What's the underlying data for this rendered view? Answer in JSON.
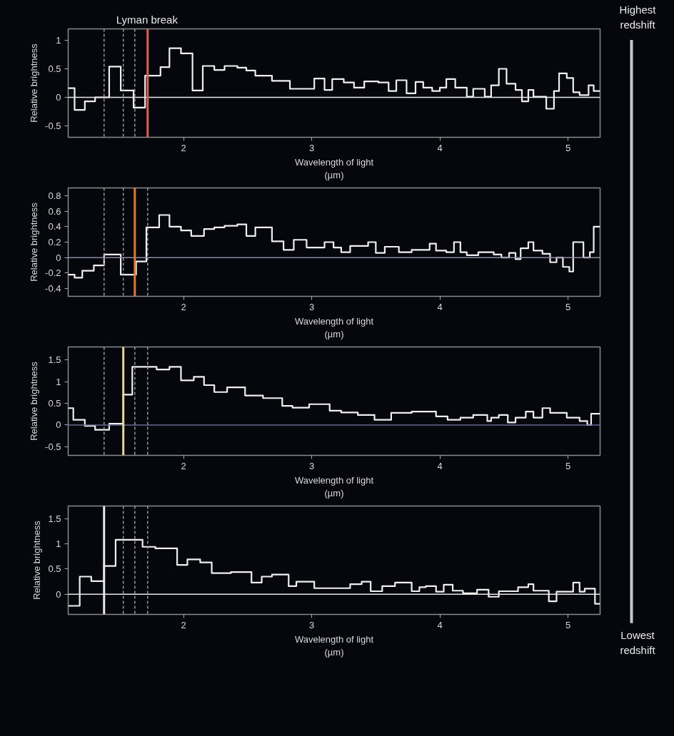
{
  "chart_data": [
    {
      "type": "step",
      "xlabel": "Wavelength of light\n(µm)",
      "ylabel": "Relative brightness",
      "xlim": [
        1.1,
        5.25
      ],
      "xticks": [
        2,
        3,
        4,
        5
      ],
      "ylim": [
        -0.7,
        1.2
      ],
      "yticks": [
        -0.5,
        0,
        0.5,
        1
      ],
      "grid": false,
      "series": [
        {
          "color": "#f0f0f0",
          "x": [
            1.1,
            1.15,
            1.23,
            1.31,
            1.42,
            1.51,
            1.61,
            1.7,
            1.82,
            1.89,
            1.98,
            2.07,
            2.15,
            2.24,
            2.32,
            2.42,
            2.49,
            2.56,
            2.69,
            2.83,
            3.02,
            3.1,
            3.16,
            3.25,
            3.33,
            3.41,
            3.52,
            3.6,
            3.66,
            3.74,
            3.81,
            3.87,
            3.94,
            4.0,
            4.05,
            4.12,
            4.21,
            4.26,
            4.35,
            4.4,
            4.46,
            4.52,
            4.59,
            4.64,
            4.69,
            4.73,
            4.83,
            4.89,
            4.93,
            4.99,
            5.04,
            5.09,
            5.16,
            5.2,
            5.25
          ],
          "values": [
            0.16,
            -0.22,
            -0.07,
            0.0,
            0.54,
            0.12,
            -0.18,
            0.38,
            0.53,
            0.86,
            0.77,
            0.12,
            0.55,
            0.48,
            0.55,
            0.52,
            0.47,
            0.38,
            0.29,
            0.15,
            0.33,
            0.13,
            0.32,
            0.26,
            0.17,
            0.28,
            0.26,
            0.11,
            0.3,
            0.07,
            0.27,
            0.17,
            0.11,
            0.17,
            0.32,
            0.17,
            0.01,
            0.15,
            0.01,
            0.21,
            0.5,
            0.24,
            0.13,
            -0.07,
            0.13,
            0.01,
            -0.2,
            0.11,
            0.42,
            0.34,
            0.09,
            0.04,
            0.21,
            0.11,
            0.11
          ]
        }
      ],
      "ref_lines": [
        {
          "axis": "y",
          "value": 0,
          "color": "#e8e8e8",
          "line_style": "solid"
        },
        {
          "axis": "x",
          "value": 1.38,
          "color": "#9a9a9a",
          "line_style": "dashed"
        },
        {
          "axis": "x",
          "value": 1.53,
          "color": "#9a9a9a",
          "line_style": "dashed"
        },
        {
          "axis": "x",
          "value": 1.62,
          "color": "#9a9a9a",
          "line_style": "dashed"
        },
        {
          "axis": "x",
          "value": 1.72,
          "color": "#e0604f",
          "line_style": "solid",
          "label": "Lyman break"
        }
      ]
    },
    {
      "type": "step",
      "xlabel": "Wavelength of light\n(µm)",
      "ylabel": "Relative brightness",
      "xlim": [
        1.1,
        5.25
      ],
      "xticks": [
        2,
        3,
        4,
        5
      ],
      "ylim": [
        -0.5,
        0.9
      ],
      "yticks": [
        -0.4,
        -0.2,
        0,
        0.2,
        0.4,
        0.6,
        0.8
      ],
      "grid": false,
      "series": [
        {
          "color": "#f0f0f0",
          "x": [
            1.1,
            1.15,
            1.21,
            1.3,
            1.38,
            1.45,
            1.51,
            1.63,
            1.71,
            1.81,
            1.89,
            1.98,
            2.06,
            2.16,
            2.24,
            2.32,
            2.42,
            2.49,
            2.56,
            2.69,
            2.78,
            2.86,
            2.96,
            3.1,
            3.17,
            3.23,
            3.3,
            3.44,
            3.5,
            3.57,
            3.68,
            3.78,
            3.92,
            3.97,
            4.05,
            4.11,
            4.16,
            4.21,
            4.3,
            4.42,
            4.48,
            4.54,
            4.59,
            4.63,
            4.69,
            4.73,
            4.8,
            4.86,
            4.91,
            4.96,
            5.01,
            5.04,
            5.12,
            5.17,
            5.2,
            5.25
          ],
          "values": [
            -0.22,
            -0.26,
            -0.17,
            -0.1,
            0.04,
            0.04,
            -0.22,
            -0.05,
            0.39,
            0.55,
            0.4,
            0.35,
            0.28,
            0.37,
            0.39,
            0.41,
            0.43,
            0.28,
            0.39,
            0.21,
            0.1,
            0.23,
            0.13,
            0.2,
            0.13,
            0.07,
            0.15,
            0.2,
            0.06,
            0.14,
            0.07,
            0.1,
            0.18,
            0.09,
            0.07,
            0.2,
            0.07,
            0.03,
            0.07,
            0.04,
            0.0,
            0.06,
            -0.02,
            0.12,
            0.2,
            0.09,
            0.05,
            -0.06,
            0.0,
            -0.12,
            -0.18,
            0.2,
            0.0,
            0.07,
            0.4,
            0.4
          ]
        }
      ],
      "ref_lines": [
        {
          "axis": "y",
          "value": 0,
          "color": "#8a8aa0",
          "line_style": "solid"
        },
        {
          "axis": "x",
          "value": 1.38,
          "color": "#9a9a9a",
          "line_style": "dashed"
        },
        {
          "axis": "x",
          "value": 1.53,
          "color": "#9a9a9a",
          "line_style": "dashed"
        },
        {
          "axis": "x",
          "value": 1.62,
          "color": "#e07a30",
          "line_style": "solid"
        },
        {
          "axis": "x",
          "value": 1.72,
          "color": "#9a9a9a",
          "line_style": "dashed"
        }
      ]
    },
    {
      "type": "step",
      "xlabel": "Wavelength of light\n(µm)",
      "ylabel": "Relative brightness",
      "xlim": [
        1.1,
        5.25
      ],
      "xticks": [
        2,
        3,
        4,
        5
      ],
      "ylim": [
        -0.7,
        1.8
      ],
      "yticks": [
        -0.5,
        0,
        0.5,
        1,
        1.5
      ],
      "grid": false,
      "series": [
        {
          "color": "#f0f0f0",
          "x": [
            1.1,
            1.14,
            1.23,
            1.31,
            1.42,
            1.53,
            1.6,
            1.79,
            1.89,
            1.98,
            2.08,
            2.16,
            2.24,
            2.34,
            2.48,
            2.62,
            2.77,
            2.85,
            2.98,
            3.14,
            3.23,
            3.36,
            3.49,
            3.62,
            3.78,
            3.97,
            4.06,
            4.16,
            4.26,
            4.37,
            4.4,
            4.46,
            4.53,
            4.59,
            4.67,
            4.73,
            4.8,
            4.86,
            4.99,
            5.09,
            5.15,
            5.18,
            5.25
          ],
          "values": [
            0.39,
            0.12,
            -0.02,
            -0.11,
            0.03,
            0.7,
            1.34,
            1.28,
            1.34,
            1.03,
            1.11,
            0.92,
            0.76,
            0.87,
            0.68,
            0.62,
            0.44,
            0.4,
            0.48,
            0.33,
            0.29,
            0.23,
            0.12,
            0.28,
            0.31,
            0.2,
            0.12,
            0.17,
            0.23,
            0.09,
            0.17,
            0.23,
            0.06,
            0.17,
            0.31,
            0.17,
            0.39,
            0.28,
            0.17,
            0.09,
            0.0,
            0.26,
            0.26
          ]
        }
      ],
      "ref_lines": [
        {
          "axis": "y",
          "value": 0,
          "color": "#6a6a90",
          "line_style": "solid"
        },
        {
          "axis": "x",
          "value": 1.38,
          "color": "#9a9a9a",
          "line_style": "dashed"
        },
        {
          "axis": "x",
          "value": 1.53,
          "color": "#e8d890",
          "line_style": "solid"
        },
        {
          "axis": "x",
          "value": 1.62,
          "color": "#9a9a9a",
          "line_style": "dashed"
        },
        {
          "axis": "x",
          "value": 1.72,
          "color": "#9a9a9a",
          "line_style": "dashed"
        }
      ]
    },
    {
      "type": "step",
      "xlabel": "Wavelength of light\n(µm)",
      "ylabel": "Relative brightness",
      "xlim": [
        1.1,
        5.25
      ],
      "xticks": [
        2,
        3,
        4,
        5
      ],
      "ylim": [
        -0.4,
        1.75
      ],
      "yticks": [
        0,
        0.5,
        1,
        1.5
      ],
      "grid": false,
      "series": [
        {
          "color": "#f0f0f0",
          "x": [
            1.1,
            1.19,
            1.28,
            1.38,
            1.47,
            1.68,
            1.78,
            1.95,
            2.03,
            2.13,
            2.22,
            2.37,
            2.53,
            2.61,
            2.69,
            2.82,
            2.88,
            3.02,
            3.3,
            3.39,
            3.46,
            3.55,
            3.65,
            3.78,
            3.84,
            3.89,
            3.97,
            4.03,
            4.1,
            4.18,
            4.29,
            4.38,
            4.46,
            4.61,
            4.69,
            4.73,
            4.85,
            4.91,
            5.04,
            5.09,
            5.13,
            5.21,
            5.25
          ],
          "values": [
            -0.23,
            0.35,
            0.26,
            0.56,
            1.08,
            0.94,
            0.91,
            0.58,
            0.69,
            0.63,
            0.42,
            0.44,
            0.23,
            0.35,
            0.39,
            0.16,
            0.25,
            0.12,
            0.2,
            0.25,
            0.06,
            0.16,
            0.23,
            0.06,
            0.14,
            0.16,
            0.05,
            0.19,
            0.07,
            0.02,
            0.09,
            -0.05,
            0.06,
            0.14,
            0.2,
            0.07,
            -0.14,
            0.05,
            0.23,
            0.05,
            0.11,
            -0.19,
            -0.19
          ]
        }
      ],
      "ref_lines": [
        {
          "axis": "y",
          "value": 0,
          "color": "#e8e8e8",
          "line_style": "solid"
        },
        {
          "axis": "x",
          "value": 1.38,
          "color": "#e8e8e8",
          "line_style": "solid"
        },
        {
          "axis": "x",
          "value": 1.53,
          "color": "#9a9a9a",
          "line_style": "dashed"
        },
        {
          "axis": "x",
          "value": 1.62,
          "color": "#9a9a9a",
          "line_style": "dashed"
        },
        {
          "axis": "x",
          "value": 1.72,
          "color": "#9a9a9a",
          "line_style": "dashed"
        }
      ]
    },
    {
      "type": "other",
      "annotations": [
        "Highest redshift",
        "Lowest redshift"
      ]
    }
  ]
}
